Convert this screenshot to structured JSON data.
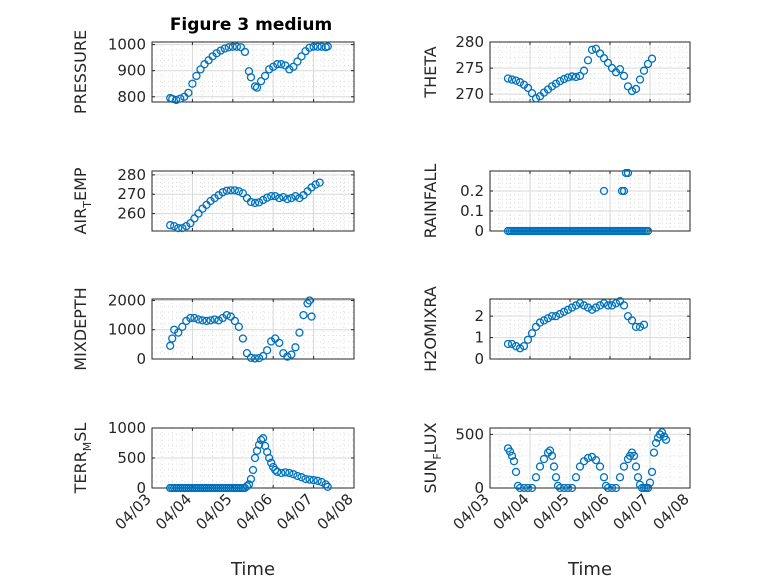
{
  "figure": {
    "title": "Figure 3 medium"
  },
  "colors": {
    "marker": "#0072BD",
    "axis": "#262626",
    "grid": "#cfcfcf"
  },
  "chart_data": [
    {
      "type": "scatter",
      "ylabel": "PRESSURE",
      "xlabel": "",
      "ylim": [
        780,
        1010
      ],
      "yticks": [
        800,
        900,
        1000
      ],
      "ytick_labels": [
        "800",
        "900",
        "1000"
      ],
      "xlim": [
        0,
        5
      ],
      "xticks": [
        0,
        1,
        2,
        3,
        4,
        5
      ],
      "xtick_labels": [],
      "points": [
        [
          0.45,
          795
        ],
        [
          0.5,
          792
        ],
        [
          0.6,
          788
        ],
        [
          0.7,
          793
        ],
        [
          0.8,
          800
        ],
        [
          0.9,
          815
        ],
        [
          1.0,
          850
        ],
        [
          1.1,
          880
        ],
        [
          1.2,
          905
        ],
        [
          1.3,
          925
        ],
        [
          1.4,
          940
        ],
        [
          1.5,
          955
        ],
        [
          1.6,
          967
        ],
        [
          1.7,
          977
        ],
        [
          1.8,
          985
        ],
        [
          1.9,
          990
        ],
        [
          2.0,
          992
        ],
        [
          2.1,
          992
        ],
        [
          2.2,
          990
        ],
        [
          2.3,
          972
        ],
        [
          2.4,
          898
        ],
        [
          2.45,
          875
        ],
        [
          2.55,
          840
        ],
        [
          2.6,
          835
        ],
        [
          2.7,
          860
        ],
        [
          2.8,
          880
        ],
        [
          2.9,
          905
        ],
        [
          3.0,
          915
        ],
        [
          3.1,
          925
        ],
        [
          3.2,
          925
        ],
        [
          3.3,
          920
        ],
        [
          3.4,
          905
        ],
        [
          3.5,
          915
        ],
        [
          3.6,
          935
        ],
        [
          3.7,
          955
        ],
        [
          3.8,
          975
        ],
        [
          3.9,
          988
        ],
        [
          4.0,
          992
        ],
        [
          4.1,
          992
        ],
        [
          4.2,
          992
        ],
        [
          4.3,
          990
        ],
        [
          4.35,
          993
        ]
      ]
    },
    {
      "type": "scatter",
      "ylabel": "THETA",
      "xlabel": "",
      "ylim": [
        268.5,
        280
      ],
      "yticks": [
        270,
        275,
        280
      ],
      "ytick_labels": [
        "270",
        "275",
        "280"
      ],
      "xlim": [
        0,
        5
      ],
      "xticks": [
        0,
        1,
        2,
        3,
        4,
        5
      ],
      "xtick_labels": [],
      "points": [
        [
          0.45,
          273
        ],
        [
          0.55,
          272.8
        ],
        [
          0.65,
          272.6
        ],
        [
          0.75,
          272.3
        ],
        [
          0.85,
          271.8
        ],
        [
          0.95,
          271.2
        ],
        [
          1.05,
          270.2
        ],
        [
          1.15,
          269.2
        ],
        [
          1.25,
          269.6
        ],
        [
          1.35,
          270.3
        ],
        [
          1.45,
          270.9
        ],
        [
          1.55,
          271.5
        ],
        [
          1.65,
          272
        ],
        [
          1.75,
          272.5
        ],
        [
          1.85,
          272.9
        ],
        [
          1.95,
          273.2
        ],
        [
          2.05,
          273.4
        ],
        [
          2.15,
          273.3
        ],
        [
          2.25,
          273.5
        ],
        [
          2.35,
          274.5
        ],
        [
          2.45,
          276.5
        ],
        [
          2.55,
          278.5
        ],
        [
          2.65,
          278.7
        ],
        [
          2.75,
          277.8
        ],
        [
          2.85,
          276.9
        ],
        [
          2.95,
          276
        ],
        [
          3.05,
          275
        ],
        [
          3.15,
          274.2
        ],
        [
          3.25,
          274.8
        ],
        [
          3.35,
          273.5
        ],
        [
          3.45,
          271.5
        ],
        [
          3.55,
          270.6
        ],
        [
          3.65,
          271
        ],
        [
          3.75,
          272.8
        ],
        [
          3.85,
          274.5
        ],
        [
          3.95,
          275.8
        ],
        [
          4.05,
          276.8
        ]
      ]
    },
    {
      "type": "scatter",
      "ylabel": "AIR_TEMP",
      "xlabel": "",
      "ylim": [
        251,
        282
      ],
      "yticks": [
        260,
        270,
        280
      ],
      "ytick_labels": [
        "260",
        "270",
        "280"
      ],
      "xlim": [
        0,
        5
      ],
      "xticks": [
        0,
        1,
        2,
        3,
        4,
        5
      ],
      "xtick_labels": [],
      "points": [
        [
          0.45,
          254
        ],
        [
          0.55,
          253.5
        ],
        [
          0.65,
          252.5
        ],
        [
          0.75,
          252.5
        ],
        [
          0.85,
          253.5
        ],
        [
          0.95,
          255
        ],
        [
          1.05,
          257.5
        ],
        [
          1.15,
          260
        ],
        [
          1.25,
          262.5
        ],
        [
          1.35,
          264.5
        ],
        [
          1.45,
          266.5
        ],
        [
          1.55,
          268
        ],
        [
          1.65,
          269.5
        ],
        [
          1.75,
          271
        ],
        [
          1.85,
          271.8
        ],
        [
          1.95,
          272
        ],
        [
          2.05,
          272
        ],
        [
          2.15,
          271.5
        ],
        [
          2.25,
          270.5
        ],
        [
          2.35,
          268
        ],
        [
          2.45,
          266
        ],
        [
          2.55,
          265.5
        ],
        [
          2.65,
          265.8
        ],
        [
          2.75,
          267
        ],
        [
          2.85,
          268.2
        ],
        [
          2.95,
          269
        ],
        [
          3.05,
          269
        ],
        [
          3.15,
          268
        ],
        [
          3.25,
          268.5
        ],
        [
          3.35,
          267.5
        ],
        [
          3.45,
          268
        ],
        [
          3.55,
          269
        ],
        [
          3.65,
          268
        ],
        [
          3.75,
          269.5
        ],
        [
          3.85,
          271.5
        ],
        [
          3.95,
          273.5
        ],
        [
          4.05,
          275
        ],
        [
          4.15,
          276
        ]
      ]
    },
    {
      "type": "scatter",
      "ylabel": "RAINFALL",
      "xlabel": "",
      "ylim": [
        0,
        0.3
      ],
      "yticks": [
        0,
        0.1,
        0.2
      ],
      "ytick_labels": [
        "0",
        "0.1",
        "0.2"
      ],
      "xlim": [
        0,
        5
      ],
      "xticks": [
        0,
        1,
        2,
        3,
        4,
        5
      ],
      "xtick_labels": [],
      "zero_from": 0.45,
      "zero_to": 3.95,
      "zero_step": 0.05,
      "points": [
        [
          2.85,
          0.2
        ],
        [
          3.3,
          0.2
        ],
        [
          3.35,
          0.2
        ],
        [
          3.4,
          0.29
        ],
        [
          3.45,
          0.29
        ]
      ]
    },
    {
      "type": "scatter",
      "ylabel": "MIXDEPTH",
      "xlabel": "",
      "ylim": [
        0,
        2050
      ],
      "yticks": [
        0,
        1000,
        2000
      ],
      "ytick_labels": [
        "0",
        "1000",
        "2000"
      ],
      "xlim": [
        0,
        5
      ],
      "xticks": [
        0,
        1,
        2,
        3,
        4,
        5
      ],
      "xtick_labels": [],
      "points": [
        [
          0.45,
          450
        ],
        [
          0.5,
          700
        ],
        [
          0.55,
          1000
        ],
        [
          0.65,
          900
        ],
        [
          0.75,
          1100
        ],
        [
          0.85,
          1300
        ],
        [
          0.95,
          1400
        ],
        [
          1.05,
          1400
        ],
        [
          1.15,
          1350
        ],
        [
          1.25,
          1320
        ],
        [
          1.35,
          1300
        ],
        [
          1.45,
          1320
        ],
        [
          1.55,
          1350
        ],
        [
          1.65,
          1320
        ],
        [
          1.75,
          1400
        ],
        [
          1.85,
          1500
        ],
        [
          1.95,
          1450
        ],
        [
          2.05,
          1300
        ],
        [
          2.15,
          1100
        ],
        [
          2.25,
          700
        ],
        [
          2.35,
          200
        ],
        [
          2.45,
          40
        ],
        [
          2.55,
          20
        ],
        [
          2.65,
          30
        ],
        [
          2.75,
          100
        ],
        [
          2.85,
          300
        ],
        [
          2.95,
          600
        ],
        [
          3.05,
          700
        ],
        [
          3.15,
          550
        ],
        [
          3.25,
          200
        ],
        [
          3.35,
          80
        ],
        [
          3.45,
          150
        ],
        [
          3.55,
          400
        ],
        [
          3.65,
          900
        ],
        [
          3.75,
          1500
        ],
        [
          3.85,
          1900
        ],
        [
          3.9,
          2000
        ],
        [
          3.95,
          1450
        ]
      ]
    },
    {
      "type": "scatter",
      "ylabel": "H2OMIXRA",
      "xlabel": "",
      "ylim": [
        0,
        2.8
      ],
      "yticks": [
        0,
        1,
        2
      ],
      "ytick_labels": [
        "0",
        "1",
        "2"
      ],
      "xlim": [
        0,
        5
      ],
      "xticks": [
        0,
        1,
        2,
        3,
        4,
        5
      ],
      "xtick_labels": [],
      "points": [
        [
          0.45,
          0.7
        ],
        [
          0.55,
          0.7
        ],
        [
          0.65,
          0.6
        ],
        [
          0.75,
          0.5
        ],
        [
          0.85,
          0.6
        ],
        [
          0.95,
          0.9
        ],
        [
          1.05,
          1.2
        ],
        [
          1.15,
          1.5
        ],
        [
          1.25,
          1.7
        ],
        [
          1.35,
          1.8
        ],
        [
          1.45,
          1.9
        ],
        [
          1.55,
          2.0
        ],
        [
          1.65,
          2.0
        ],
        [
          1.75,
          2.1
        ],
        [
          1.85,
          2.2
        ],
        [
          1.95,
          2.3
        ],
        [
          2.05,
          2.4
        ],
        [
          2.15,
          2.5
        ],
        [
          2.25,
          2.6
        ],
        [
          2.35,
          2.5
        ],
        [
          2.45,
          2.4
        ],
        [
          2.55,
          2.3
        ],
        [
          2.65,
          2.4
        ],
        [
          2.75,
          2.5
        ],
        [
          2.85,
          2.6
        ],
        [
          2.95,
          2.5
        ],
        [
          3.05,
          2.5
        ],
        [
          3.15,
          2.6
        ],
        [
          3.25,
          2.7
        ],
        [
          3.35,
          2.5
        ],
        [
          3.45,
          2.0
        ],
        [
          3.55,
          1.8
        ],
        [
          3.65,
          1.5
        ],
        [
          3.75,
          1.5
        ],
        [
          3.85,
          1.6
        ]
      ]
    },
    {
      "type": "scatter",
      "ylabel": "TERR_MSL",
      "xlabel": "Time",
      "ylim": [
        0,
        1000
      ],
      "yticks": [
        0,
        500,
        1000
      ],
      "ytick_labels": [
        "0",
        "500",
        "1000"
      ],
      "xlim": [
        0,
        5
      ],
      "xticks": [
        0,
        1,
        2,
        3,
        4,
        5
      ],
      "xtick_labels": [
        "04/03",
        "04/04",
        "04/05",
        "04/06",
        "04/07",
        "04/08"
      ],
      "zero_from": 0.45,
      "zero_to": 2.3,
      "zero_step": 0.05,
      "points": [
        [
          2.35,
          30
        ],
        [
          2.4,
          60
        ],
        [
          2.45,
          150
        ],
        [
          2.5,
          300
        ],
        [
          2.55,
          500
        ],
        [
          2.6,
          620
        ],
        [
          2.65,
          720
        ],
        [
          2.7,
          800
        ],
        [
          2.75,
          830
        ],
        [
          2.8,
          700
        ],
        [
          2.85,
          600
        ],
        [
          2.9,
          500
        ],
        [
          2.95,
          420
        ],
        [
          3.0,
          350
        ],
        [
          3.05,
          300
        ],
        [
          3.1,
          270
        ],
        [
          3.2,
          250
        ],
        [
          3.3,
          260
        ],
        [
          3.4,
          250
        ],
        [
          3.5,
          230
        ],
        [
          3.6,
          200
        ],
        [
          3.7,
          180
        ],
        [
          3.8,
          150
        ],
        [
          3.9,
          140
        ],
        [
          4.0,
          130
        ],
        [
          4.1,
          120
        ],
        [
          4.2,
          100
        ],
        [
          4.3,
          60
        ],
        [
          4.35,
          20
        ]
      ]
    },
    {
      "type": "scatter",
      "ylabel": "SUN_FLUX",
      "xlabel": "Time",
      "ylim": [
        0,
        560
      ],
      "yticks": [
        0,
        500
      ],
      "ytick_labels": [
        "0",
        "500"
      ],
      "xlim": [
        0,
        5
      ],
      "xticks": [
        0,
        1,
        2,
        3,
        4,
        5
      ],
      "xtick_labels": [
        "04/03",
        "04/04",
        "04/05",
        "04/06",
        "04/07",
        "04/08"
      ],
      "points": [
        [
          0.45,
          370
        ],
        [
          0.5,
          340
        ],
        [
          0.55,
          300
        ],
        [
          0.6,
          250
        ],
        [
          0.65,
          150
        ],
        [
          0.7,
          20
        ],
        [
          0.75,
          0
        ],
        [
          0.85,
          0
        ],
        [
          0.95,
          0
        ],
        [
          1.05,
          0
        ],
        [
          1.15,
          100
        ],
        [
          1.25,
          200
        ],
        [
          1.35,
          270
        ],
        [
          1.45,
          330
        ],
        [
          1.5,
          350
        ],
        [
          1.55,
          300
        ],
        [
          1.6,
          200
        ],
        [
          1.65,
          100
        ],
        [
          1.7,
          20
        ],
        [
          1.75,
          0
        ],
        [
          1.85,
          0
        ],
        [
          1.95,
          0
        ],
        [
          2.05,
          0
        ],
        [
          2.15,
          100
        ],
        [
          2.25,
          200
        ],
        [
          2.35,
          250
        ],
        [
          2.45,
          280
        ],
        [
          2.55,
          290
        ],
        [
          2.65,
          260
        ],
        [
          2.75,
          200
        ],
        [
          2.85,
          100
        ],
        [
          2.9,
          20
        ],
        [
          2.95,
          0
        ],
        [
          3.05,
          0
        ],
        [
          3.15,
          0
        ],
        [
          3.25,
          100
        ],
        [
          3.35,
          200
        ],
        [
          3.45,
          270
        ],
        [
          3.5,
          300
        ],
        [
          3.55,
          330
        ],
        [
          3.6,
          300
        ],
        [
          3.65,
          200
        ],
        [
          3.7,
          100
        ],
        [
          3.75,
          30
        ],
        [
          3.8,
          0
        ],
        [
          3.85,
          0
        ],
        [
          3.9,
          0
        ],
        [
          3.95,
          0
        ],
        [
          4.0,
          50
        ],
        [
          4.05,
          150
        ],
        [
          4.1,
          330
        ],
        [
          4.15,
          420
        ],
        [
          4.2,
          470
        ],
        [
          4.25,
          500
        ],
        [
          4.3,
          520
        ],
        [
          4.35,
          480
        ],
        [
          4.4,
          450
        ]
      ]
    }
  ]
}
